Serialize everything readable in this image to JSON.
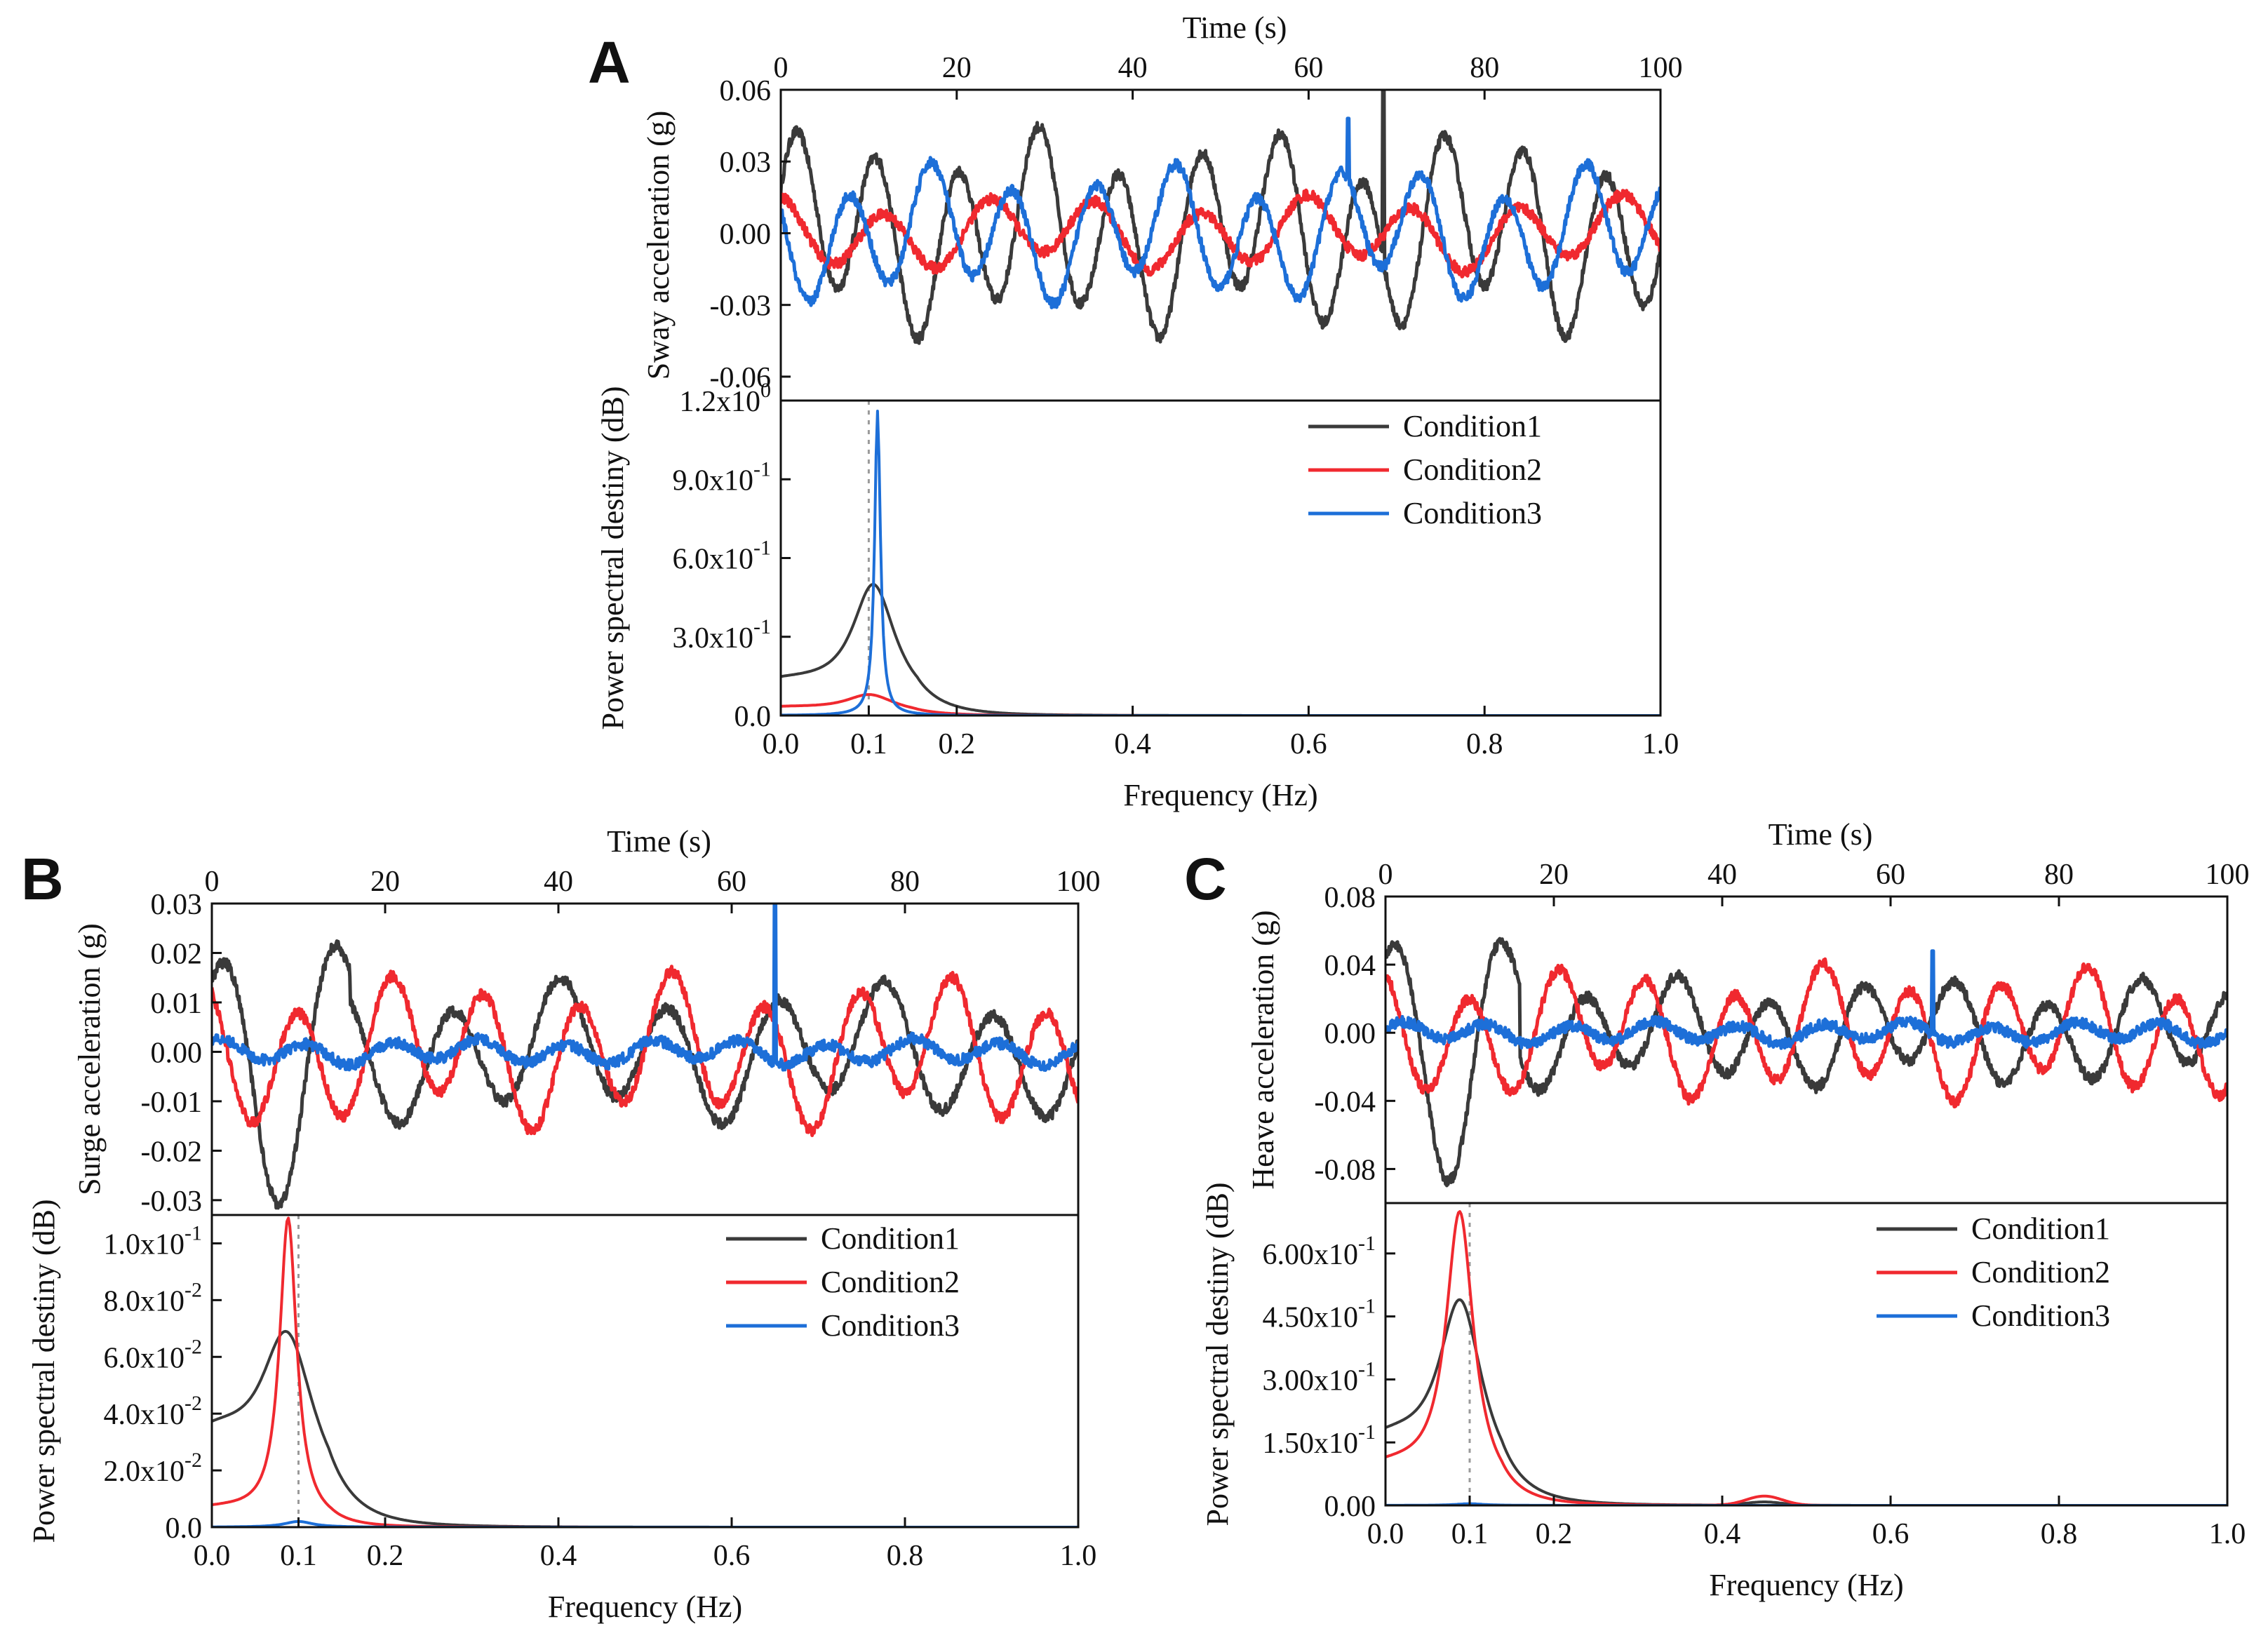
{
  "figure": {
    "panels": [
      {
        "id": "A",
        "letter": "A"
      },
      {
        "id": "B",
        "letter": "B"
      },
      {
        "id": "C",
        "letter": "C"
      }
    ]
  },
  "colors": {
    "condition1": "#3a3a3a",
    "condition2": "#f0292f",
    "condition3": "#1d6fd8",
    "axis": "#111111",
    "dashed_marker": "#9a9a9a"
  },
  "chart_data": [
    {
      "panel": "A",
      "type": "line",
      "subplot": "time",
      "title": "",
      "xlabel": "Time (s)",
      "ylabel": "Sway acceleration (g)",
      "xlim": [
        0,
        100
      ],
      "ylim": [
        -0.07,
        0.06
      ],
      "xticks": [
        0,
        20,
        40,
        60,
        80,
        100
      ],
      "xtick_labels": [
        "0",
        "20",
        "40",
        "60",
        "80",
        "100"
      ],
      "yticks": [
        -0.06,
        -0.03,
        0.0,
        0.03,
        0.06
      ],
      "ytick_labels": [
        "-0.06",
        "-0.03",
        "0.00",
        "0.03",
        "0.06"
      ],
      "series": [
        {
          "name": "Condition1",
          "amplitude": 0.033,
          "period_s": 9.2,
          "phase": 0.4,
          "spike": {
            "x": 68.5,
            "y": 0.06
          }
        },
        {
          "name": "Condition2",
          "amplitude": 0.012,
          "period_s": 12.0,
          "phase": 1.7
        },
        {
          "name": "Condition3",
          "amplitude": 0.022,
          "period_s": 9.3,
          "phase": 2.6,
          "spike": {
            "x": 64.5,
            "y": 0.048
          }
        }
      ]
    },
    {
      "panel": "A",
      "type": "line",
      "subplot": "psd",
      "xlabel": "Frequency (Hz)",
      "ylabel": "Power spectral destiny (dB)",
      "xlim": [
        0,
        1.0
      ],
      "ylim": [
        0,
        1.2
      ],
      "xticks": [
        0.0,
        0.1,
        0.2,
        0.4,
        0.6,
        0.8,
        1.0
      ],
      "xtick_labels": [
        "0.0",
        "0.1",
        "0.2",
        "0.4",
        "0.6",
        "0.8",
        "1.0"
      ],
      "yticks": [
        0.0,
        0.3,
        0.6,
        0.9,
        1.2
      ],
      "ytick_labels": [
        {
          "base": "0.0",
          "exp": ""
        },
        {
          "base": "3.0x10",
          "exp": "-1"
        },
        {
          "base": "6.0x10",
          "exp": "-1"
        },
        {
          "base": "9.0x10",
          "exp": "-1"
        },
        {
          "base": "1.2x10",
          "exp": "0"
        }
      ],
      "reference_line_x": 0.1,
      "legend": [
        "Condition1",
        "Condition2",
        "Condition3"
      ],
      "legend_position": "top-right",
      "series": [
        {
          "name": "Condition1",
          "peak_freq": 0.105,
          "peak_value": 0.5,
          "width": 0.03,
          "base": 0.12
        },
        {
          "name": "Condition2",
          "peak_freq": 0.1,
          "peak_value": 0.08,
          "width": 0.035,
          "base": 0.03
        },
        {
          "name": "Condition3",
          "peak_freq": 0.11,
          "peak_value": 1.16,
          "width": 0.004,
          "base": 0.0
        }
      ]
    },
    {
      "panel": "B",
      "type": "line",
      "subplot": "time",
      "xlabel": "Time (s)",
      "ylabel": "Surge acceleration (g)",
      "xlim": [
        0,
        100
      ],
      "ylim": [
        -0.033,
        0.03
      ],
      "xticks": [
        0,
        20,
        40,
        60,
        80,
        100
      ],
      "xtick_labels": [
        "0",
        "20",
        "40",
        "60",
        "80",
        "100"
      ],
      "yticks": [
        -0.03,
        -0.02,
        -0.01,
        0.0,
        0.01,
        0.02,
        0.03
      ],
      "ytick_labels": [
        "-0.03",
        "-0.02",
        "-0.01",
        "0.00",
        "0.01",
        "0.02",
        "0.03"
      ],
      "series": [
        {
          "name": "Condition1",
          "amplitude": 0.011,
          "period_s": 12.5,
          "phase": 0.2,
          "early_swing": 0.029
        },
        {
          "name": "Condition2",
          "amplitude": 0.012,
          "period_s": 10.8,
          "phase": 2.1
        },
        {
          "name": "Condition3",
          "amplitude": 0.002,
          "period_s": 10.0,
          "phase": 1.0,
          "spike": {
            "x": 65.0,
            "y": 0.03
          }
        }
      ]
    },
    {
      "panel": "B",
      "type": "line",
      "subplot": "psd",
      "xlabel": "Frequency (Hz)",
      "ylabel": "Power spectral destiny (dB)",
      "xlim": [
        0,
        1.0
      ],
      "ylim": [
        0,
        0.11
      ],
      "xticks": [
        0.0,
        0.1,
        0.2,
        0.4,
        0.6,
        0.8,
        1.0
      ],
      "xtick_labels": [
        "0.0",
        "0.1",
        "0.2",
        "0.4",
        "0.6",
        "0.8",
        "1.0"
      ],
      "yticks": [
        0.0,
        0.02,
        0.04,
        0.06,
        0.08,
        0.1
      ],
      "ytick_labels": [
        {
          "base": "0.0",
          "exp": ""
        },
        {
          "base": "2.0x10",
          "exp": "-2"
        },
        {
          "base": "4.0x10",
          "exp": "-2"
        },
        {
          "base": "6.0x10",
          "exp": "-2"
        },
        {
          "base": "8.0x10",
          "exp": "-2"
        },
        {
          "base": "1.0x10",
          "exp": "-1"
        }
      ],
      "reference_line_x": 0.1,
      "legend": [
        "Condition1",
        "Condition2",
        "Condition3"
      ],
      "legend_position": "top-right",
      "series": [
        {
          "name": "Condition1",
          "peak_freq": 0.085,
          "peak_value": 0.069,
          "width": 0.038,
          "base": 0.031
        },
        {
          "name": "Condition2",
          "peak_freq": 0.088,
          "peak_value": 0.109,
          "width": 0.012,
          "base": 0.006
        },
        {
          "name": "Condition3",
          "peak_freq": 0.1,
          "peak_value": 0.002,
          "width": 0.02,
          "base": 0.0
        }
      ]
    },
    {
      "panel": "C",
      "type": "line",
      "subplot": "time",
      "xlabel": "Time (s)",
      "ylabel": "Heave acceleration (g)",
      "xlim": [
        0,
        100
      ],
      "ylim": [
        -0.1,
        0.08
      ],
      "xticks": [
        0,
        20,
        40,
        60,
        80,
        100
      ],
      "xtick_labels": [
        "0",
        "20",
        "40",
        "60",
        "80",
        "100"
      ],
      "yticks": [
        -0.08,
        -0.04,
        0.0,
        0.04,
        0.08
      ],
      "ytick_labels": [
        "-0.08",
        "-0.04",
        "0.00",
        "0.04",
        "0.08"
      ],
      "series": [
        {
          "name": "Condition1",
          "amplitude": 0.025,
          "period_s": 11.0,
          "phase": 0.6,
          "early_swing": 0.08
        },
        {
          "name": "Condition2",
          "amplitude": 0.03,
          "period_s": 10.5,
          "phase": 1.9
        },
        {
          "name": "Condition3",
          "amplitude": 0.005,
          "period_s": 10.0,
          "phase": 0.3,
          "spike": {
            "x": 65.0,
            "y": 0.048
          }
        }
      ]
    },
    {
      "panel": "C",
      "type": "line",
      "subplot": "psd",
      "xlabel": "Frequency (Hz)",
      "ylabel": "Power spectral destiny (dB)",
      "xlim": [
        0,
        1.0
      ],
      "ylim": [
        0,
        0.72
      ],
      "xticks": [
        0.0,
        0.1,
        0.2,
        0.4,
        0.6,
        0.8,
        1.0
      ],
      "xtick_labels": [
        "0.0",
        "0.1",
        "0.2",
        "0.4",
        "0.6",
        "0.8",
        "1.0"
      ],
      "yticks": [
        0.0,
        0.15,
        0.3,
        0.45,
        0.6
      ],
      "ytick_labels": [
        {
          "base": "0.00",
          "exp": ""
        },
        {
          "base": "1.50x10",
          "exp": "-1"
        },
        {
          "base": "3.00x10",
          "exp": "-1"
        },
        {
          "base": "4.50x10",
          "exp": "-1"
        },
        {
          "base": "6.00x10",
          "exp": "-1"
        }
      ],
      "reference_line_x": 0.1,
      "legend": [
        "Condition1",
        "Condition2",
        "Condition3"
      ],
      "legend_position": "top-right",
      "series": [
        {
          "name": "Condition1",
          "peak_freq": 0.088,
          "peak_value": 0.49,
          "width": 0.032,
          "base": 0.145,
          "bump": {
            "x": 0.45,
            "y": 0.008,
            "w": 0.03
          }
        },
        {
          "name": "Condition2",
          "peak_freq": 0.088,
          "peak_value": 0.7,
          "width": 0.02,
          "base": 0.085,
          "bump": {
            "x": 0.45,
            "y": 0.022,
            "w": 0.03
          }
        },
        {
          "name": "Condition3",
          "peak_freq": 0.1,
          "peak_value": 0.004,
          "width": 0.02,
          "base": 0.0
        }
      ]
    }
  ]
}
